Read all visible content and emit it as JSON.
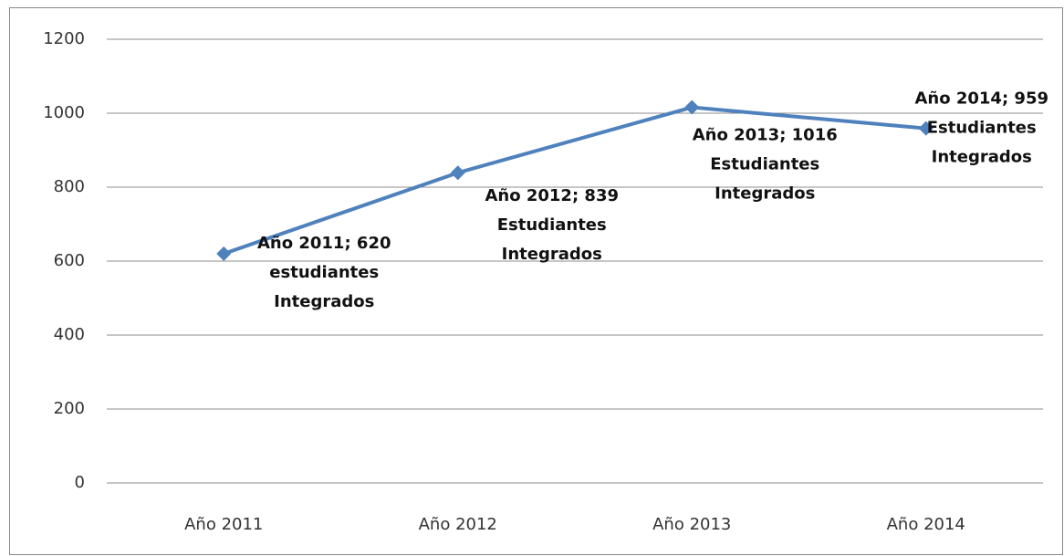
{
  "chart_data": {
    "type": "line",
    "categories": [
      "Año 2011",
      "Año 2012",
      "Año 2013",
      "Año 2014"
    ],
    "series": [
      {
        "color": "#4f81bd",
        "values": [
          620,
          839,
          1016,
          959
        ],
        "value_labels": [
          [
            "Año 2011; 620",
            "estudiantes",
            "Integrados"
          ],
          [
            "Año 2012; 839",
            "Estudiantes",
            "Integrados"
          ],
          [
            "Año 2013; 1016",
            "Estudiantes",
            "Integrados"
          ],
          [
            "Año 2014; 959",
            "Estudiantes",
            "Integrados"
          ]
        ]
      }
    ],
    "ylim": [
      0,
      1200
    ],
    "yticks": [
      0,
      200,
      400,
      600,
      800,
      1000,
      1200
    ],
    "grid": true
  }
}
